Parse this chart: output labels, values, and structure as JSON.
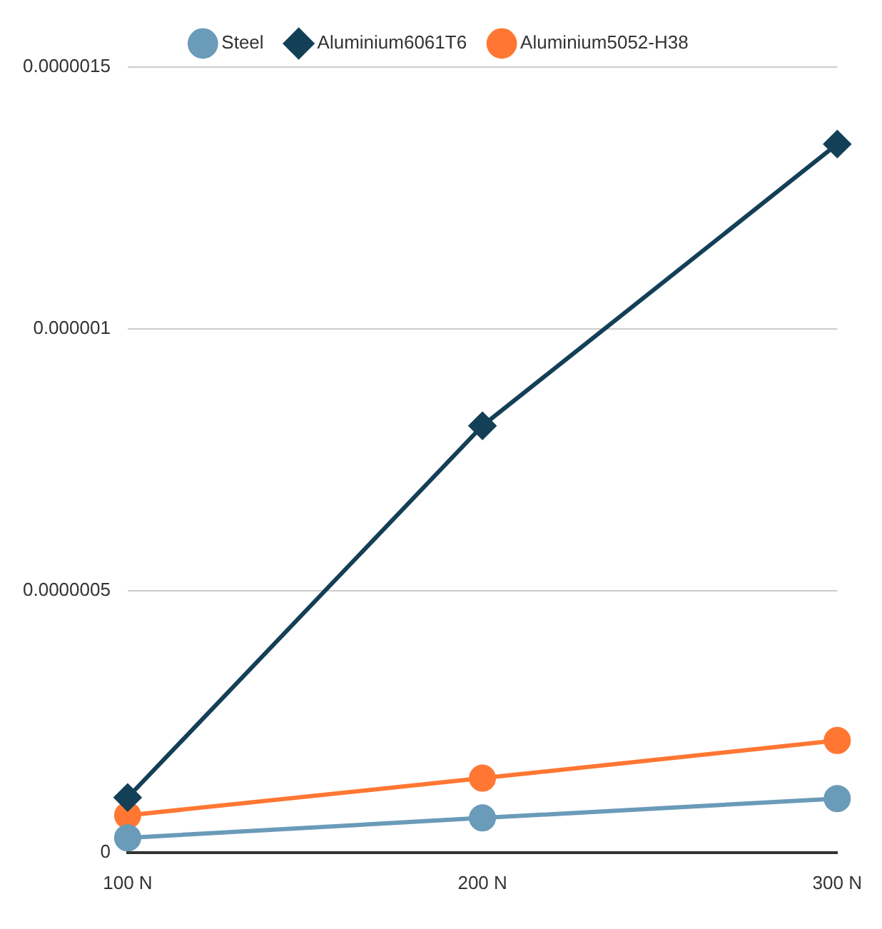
{
  "chart_data": {
    "type": "line",
    "categories": [
      "100 N",
      "200 N",
      "300 N"
    ],
    "series": [
      {
        "name": "Steel",
        "color": "#6a9bb8",
        "marker": "circle",
        "values": [
          2.8e-08,
          6.6e-08,
          1.03e-07
        ]
      },
      {
        "name": "Aluminium6061T6",
        "color": "#133f57",
        "marker": "diamond",
        "values": [
          1.05e-07,
          8.15e-07,
          1.353e-06
        ]
      },
      {
        "name": "Aluminium5052-H38",
        "color": "#ff7733",
        "marker": "circle",
        "values": [
          7.1e-08,
          1.42e-07,
          2.14e-07
        ]
      }
    ],
    "ylim": [
      0,
      1.5e-06
    ],
    "yticks": [
      {
        "value": 0,
        "label": "0"
      },
      {
        "value": 5e-07,
        "label": "0.0000005"
      },
      {
        "value": 1e-06,
        "label": "0.000001"
      },
      {
        "value": 1.5e-06,
        "label": "0.0000015"
      }
    ],
    "grid": "y",
    "legend": "top"
  }
}
